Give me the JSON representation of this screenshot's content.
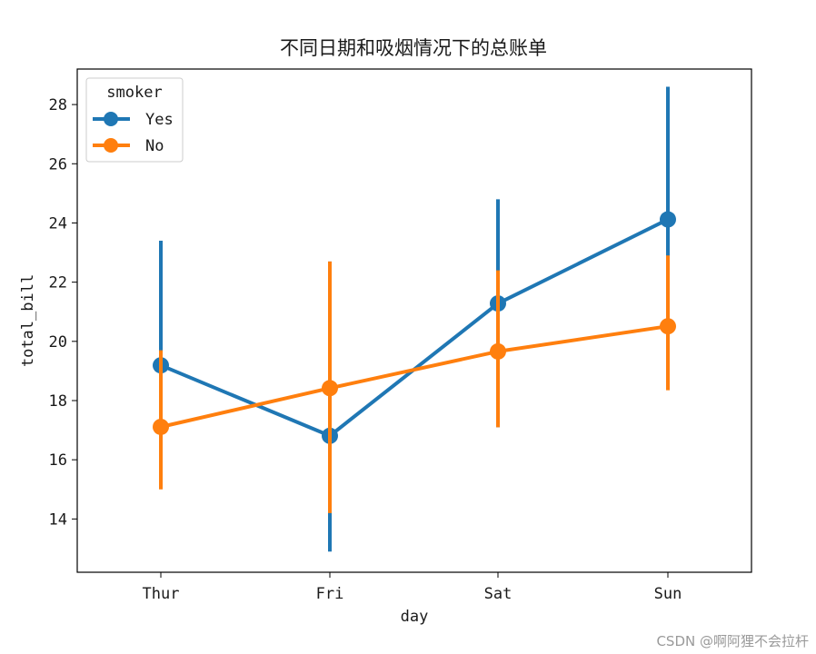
{
  "chart_data": {
    "type": "line",
    "title": "不同日期和吸烟情况下的总账单",
    "xlabel": "day",
    "ylabel": "total_bill",
    "categories": [
      "Thur",
      "Fri",
      "Sat",
      "Sun"
    ],
    "ylim": [
      12.2,
      29.2
    ],
    "yticks": [
      14,
      16,
      18,
      20,
      22,
      24,
      26,
      28
    ],
    "grid": false,
    "legend": {
      "title": "smoker",
      "placement": "top-left"
    },
    "series": [
      {
        "name": "Yes",
        "color": "#1f77b4",
        "values": [
          19.19,
          16.81,
          21.28,
          24.12
        ],
        "ci": [
          [
            15.85,
            23.4
          ],
          [
            12.9,
            22.7
          ],
          [
            17.1,
            24.8
          ],
          [
            19.8,
            28.6
          ]
        ]
      },
      {
        "name": "No",
        "color": "#ff7f0e",
        "values": [
          17.11,
          18.42,
          19.66,
          20.51
        ],
        "ci": [
          [
            15.0,
            19.7
          ],
          [
            14.2,
            22.7
          ],
          [
            17.1,
            22.4
          ],
          [
            18.35,
            22.9
          ]
        ]
      }
    ]
  },
  "watermark": "CSDN @啊阿狸不会拉杆"
}
